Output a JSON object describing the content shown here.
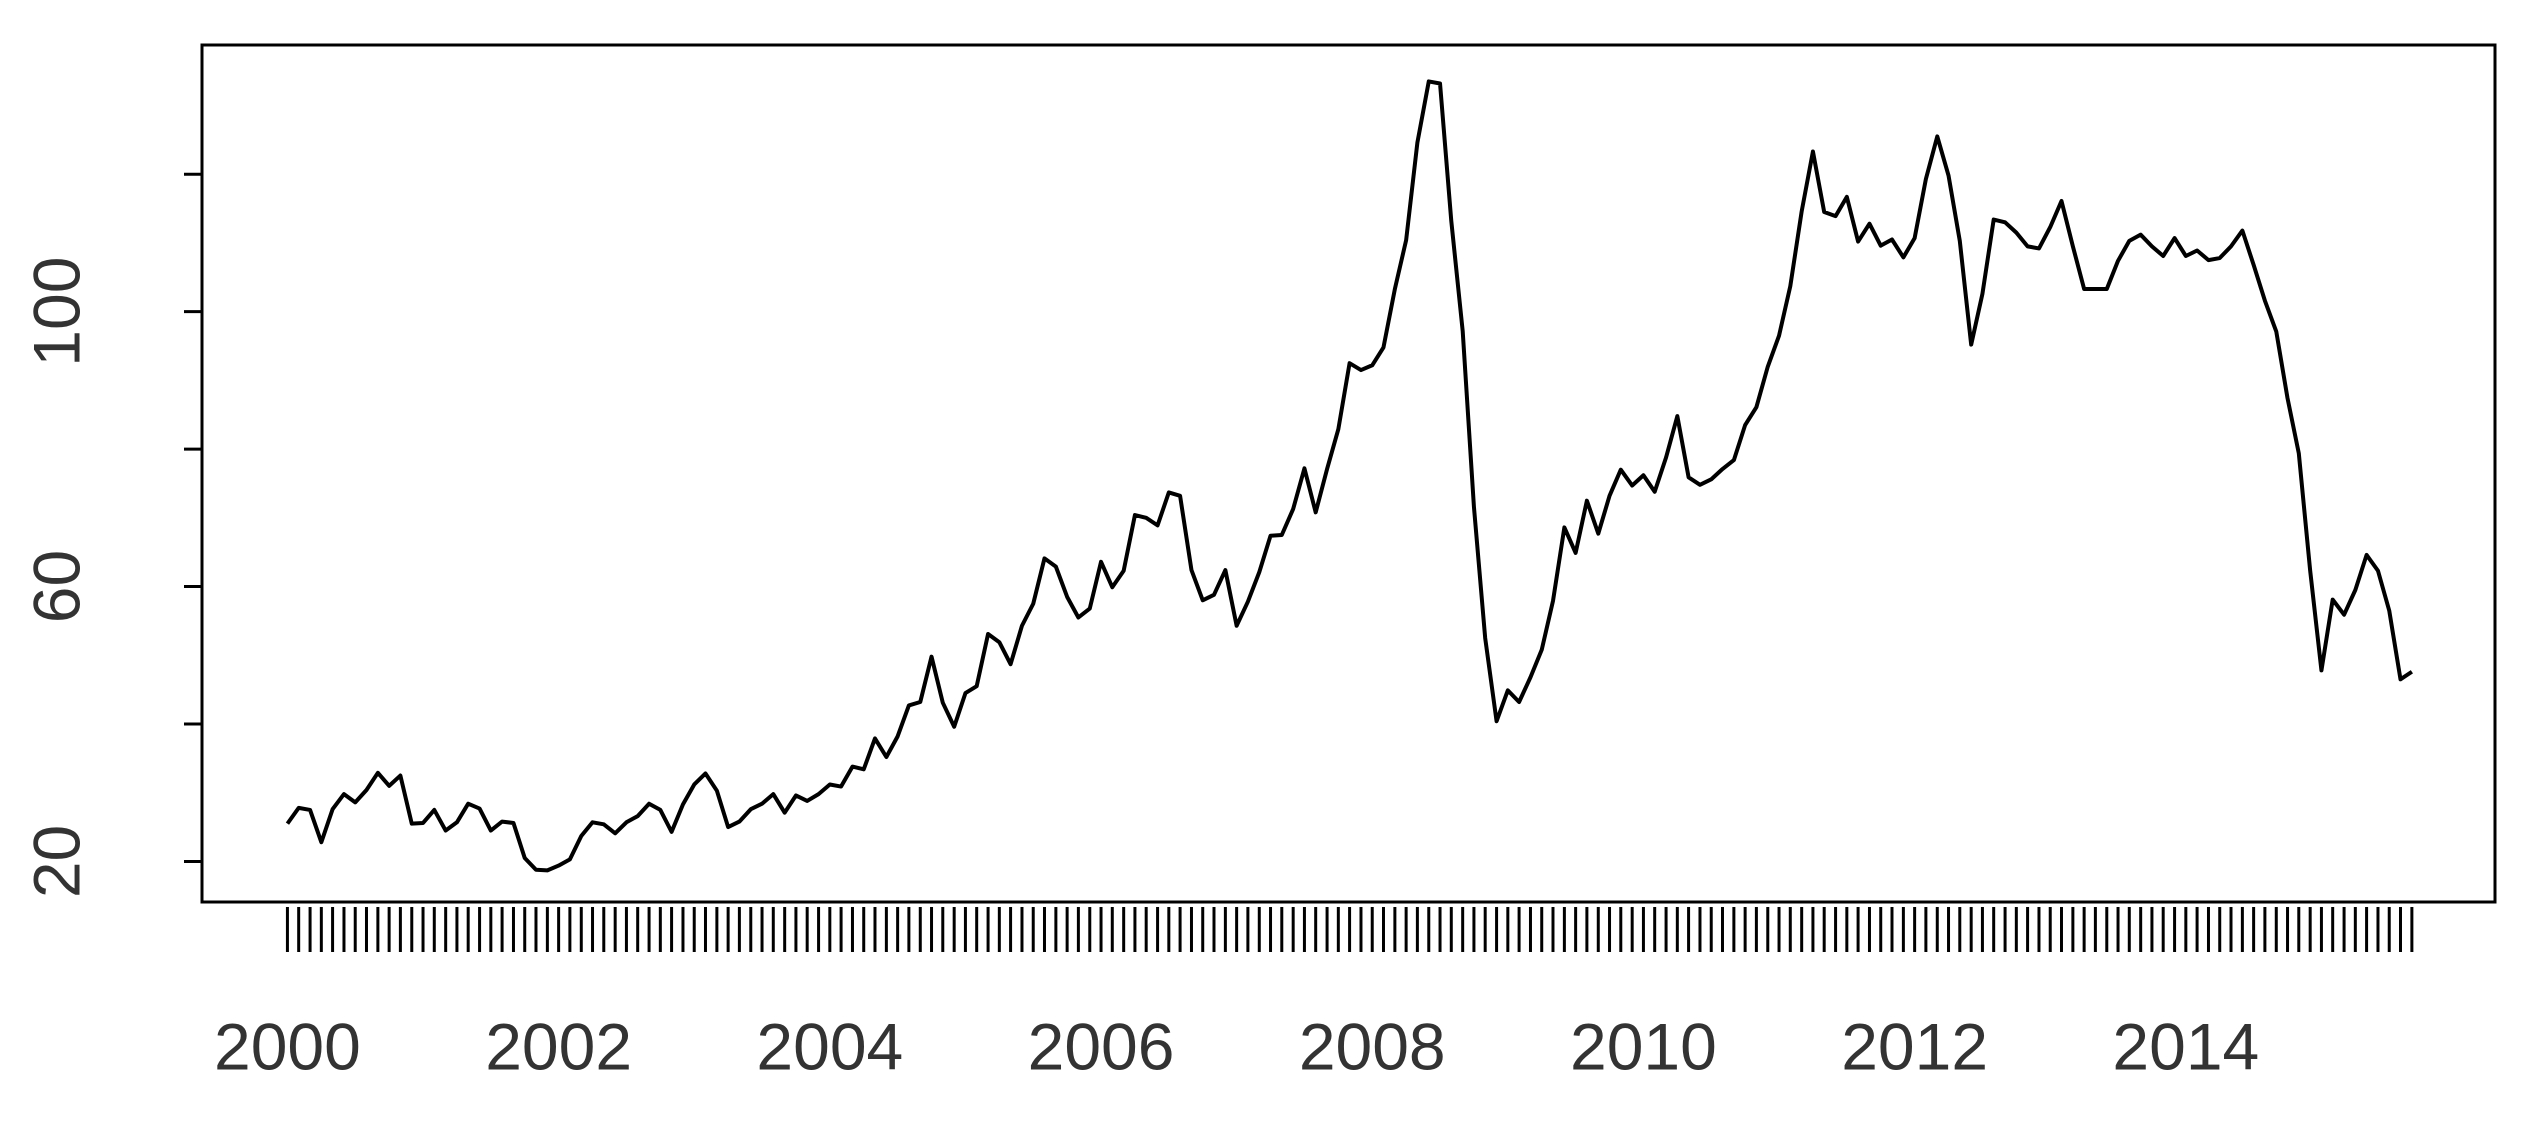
{
  "chart_data": {
    "type": "line",
    "x": [
      2000,
      2000.083,
      2000.167,
      2000.25,
      2000.333,
      2000.417,
      2000.5,
      2000.583,
      2000.667,
      2000.75,
      2000.833,
      2000.917,
      2001,
      2001.083,
      2001.167,
      2001.25,
      2001.333,
      2001.417,
      2001.5,
      2001.583,
      2001.667,
      2001.75,
      2001.833,
      2001.917,
      2002,
      2002.083,
      2002.167,
      2002.25,
      2002.333,
      2002.417,
      2002.5,
      2002.583,
      2002.667,
      2002.75,
      2002.833,
      2002.917,
      2003,
      2003.083,
      2003.167,
      2003.25,
      2003.333,
      2003.417,
      2003.5,
      2003.583,
      2003.667,
      2003.75,
      2003.833,
      2003.917,
      2004,
      2004.083,
      2004.167,
      2004.25,
      2004.333,
      2004.417,
      2004.5,
      2004.583,
      2004.667,
      2004.75,
      2004.833,
      2004.917,
      2005,
      2005.083,
      2005.167,
      2005.25,
      2005.333,
      2005.417,
      2005.5,
      2005.583,
      2005.667,
      2005.75,
      2005.833,
      2005.917,
      2006,
      2006.083,
      2006.167,
      2006.25,
      2006.333,
      2006.417,
      2006.5,
      2006.583,
      2006.667,
      2006.75,
      2006.833,
      2006.917,
      2007,
      2007.083,
      2007.167,
      2007.25,
      2007.333,
      2007.417,
      2007.5,
      2007.583,
      2007.667,
      2007.75,
      2007.833,
      2007.917,
      2008,
      2008.083,
      2008.167,
      2008.25,
      2008.333,
      2008.417,
      2008.5,
      2008.583,
      2008.667,
      2008.75,
      2008.833,
      2008.917,
      2009,
      2009.083,
      2009.167,
      2009.25,
      2009.333,
      2009.417,
      2009.5,
      2009.583,
      2009.667,
      2009.75,
      2009.833,
      2009.917,
      2010,
      2010.083,
      2010.167,
      2010.25,
      2010.333,
      2010.417,
      2010.5,
      2010.583,
      2010.667,
      2010.75,
      2010.833,
      2010.917,
      2011,
      2011.083,
      2011.167,
      2011.25,
      2011.333,
      2011.417,
      2011.5,
      2011.583,
      2011.667,
      2011.75,
      2011.833,
      2011.917,
      2012,
      2012.083,
      2012.167,
      2012.25,
      2012.333,
      2012.417,
      2012.5,
      2012.583,
      2012.667,
      2012.75,
      2012.833,
      2012.917,
      2013,
      2013.083,
      2013.167,
      2013.25,
      2013.333,
      2013.417,
      2013.5,
      2013.583,
      2013.667,
      2013.75,
      2013.833,
      2013.917,
      2014,
      2014.083,
      2014.167,
      2014.25,
      2014.333,
      2014.417,
      2014.5,
      2014.583,
      2014.667,
      2014.75,
      2014.833,
      2014.917,
      2015,
      2015.083,
      2015.167,
      2015.25,
      2015.333,
      2015.417,
      2015.5,
      2015.583,
      2015.667
    ],
    "values": [
      25.5,
      27.8,
      27.5,
      22.8,
      27.6,
      29.8,
      28.6,
      30.4,
      32.9,
      31.0,
      32.5,
      25.5,
      25.6,
      27.5,
      24.5,
      25.7,
      28.4,
      27.7,
      24.5,
      25.8,
      25.6,
      20.5,
      18.8,
      18.7,
      19.4,
      20.3,
      23.7,
      25.7,
      25.4,
      24.1,
      25.7,
      26.6,
      28.4,
      27.5,
      24.3,
      28.3,
      31.2,
      32.8,
      30.3,
      25.0,
      25.8,
      27.6,
      28.4,
      29.8,
      27.1,
      29.6,
      28.8,
      29.8,
      31.2,
      30.9,
      33.8,
      33.4,
      37.9,
      35.2,
      38.2,
      42.7,
      43.2,
      49.8,
      43.1,
      39.6,
      44.5,
      45.5,
      53.1,
      51.9,
      48.7,
      54.3,
      57.5,
      64.1,
      62.9,
      58.5,
      55.5,
      56.8,
      63.6,
      59.9,
      62.3,
      70.4,
      70.0,
      68.9,
      73.7,
      73.2,
      62.4,
      58.0,
      58.8,
      62.4,
      54.3,
      57.8,
      62.1,
      67.4,
      67.5,
      71.3,
      77.2,
      70.8,
      77.1,
      82.9,
      92.5,
      91.5,
      92.2,
      94.8,
      103.3,
      110.4,
      124.6,
      133.5,
      133.2,
      113.2,
      97.2,
      71.6,
      52.5,
      40.4,
      44.9,
      43.2,
      46.8,
      50.8,
      57.9,
      68.6,
      64.9,
      72.5,
      67.7,
      73.2,
      77.0,
      74.7,
      76.2,
      73.8,
      78.8,
      84.8,
      75.9,
      74.8,
      75.6,
      77.1,
      78.4,
      83.5,
      86.1,
      92.0,
      96.5,
      103.7,
      114.6,
      123.3,
      114.5,
      113.9,
      116.7,
      110.2,
      112.8,
      109.6,
      110.5,
      107.9,
      110.7,
      119.3,
      125.5,
      119.8,
      110.3,
      95.2,
      102.6,
      113.4,
      113.0,
      111.5,
      109.5,
      109.2,
      112.3,
      116.1,
      109.5,
      103.3,
      103.3,
      103.3,
      107.4,
      110.3,
      111.2,
      109.5,
      108.1,
      110.7,
      108.1,
      108.9,
      107.5,
      107.8,
      109.5,
      111.8,
      106.8,
      101.6,
      97.1,
      87.4,
      79.4,
      62.3,
      47.8,
      58.1,
      55.9,
      59.5,
      64.6,
      62.3,
      56.5,
      46.5,
      47.6
    ],
    "color": "#000000",
    "xlim": [
      1999.37,
      2016.28
    ],
    "xticks": [
      2000,
      2002,
      2004,
      2006,
      2008,
      2010,
      2012,
      2014
    ],
    "ylim": [
      14.1,
      138.8
    ],
    "yticks": [
      20,
      60,
      100
    ],
    "minor_yticks": [
      40,
      80,
      120
    ]
  }
}
